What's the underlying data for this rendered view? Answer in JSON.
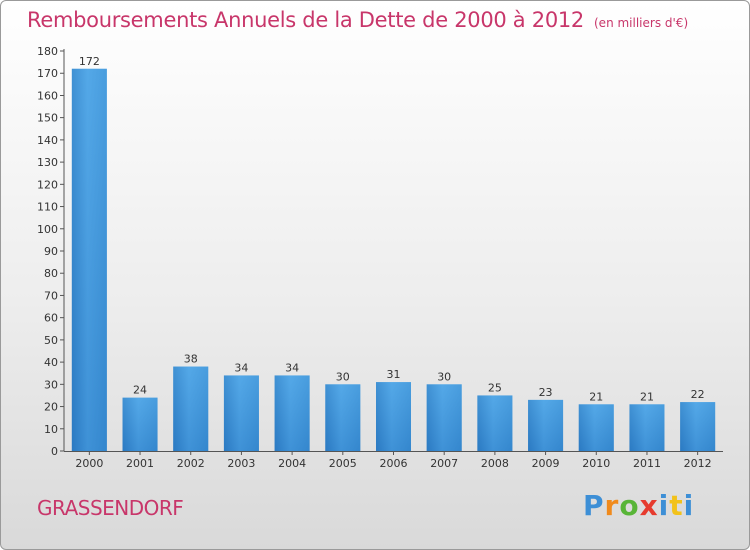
{
  "title": "Remboursements Annuels de la Dette de 2000 à 2012",
  "subtitle": "(en milliers d'€)",
  "commune": "GRASSENDORF",
  "logo": {
    "text": "Proxiti",
    "colors": [
      "#3d8fd6",
      "#f08a1c",
      "#58b537",
      "#e63b2e",
      "#3d8fd6",
      "#f2c21a"
    ]
  },
  "chart_data": {
    "type": "bar",
    "title": "Remboursements Annuels de la Dette de 2000 à 2012",
    "subtitle": "(en milliers d'€)",
    "categories": [
      "2000",
      "2001",
      "2002",
      "2003",
      "2004",
      "2005",
      "2006",
      "2007",
      "2008",
      "2009",
      "2010",
      "2011",
      "2012"
    ],
    "values": [
      172,
      24,
      38,
      34,
      34,
      30,
      31,
      30,
      25,
      23,
      21,
      21,
      22
    ],
    "data_labels": [
      "172",
      "24",
      "38",
      "34",
      "34",
      "30",
      "31",
      "30",
      "25",
      "23",
      "21",
      "21",
      "22"
    ],
    "ylim": [
      0,
      180
    ],
    "yticks": [
      0,
      10,
      20,
      30,
      40,
      50,
      60,
      70,
      80,
      90,
      100,
      110,
      120,
      130,
      140,
      150,
      160,
      170,
      180
    ],
    "grid": false,
    "bar_color": "#3b8fd4"
  }
}
